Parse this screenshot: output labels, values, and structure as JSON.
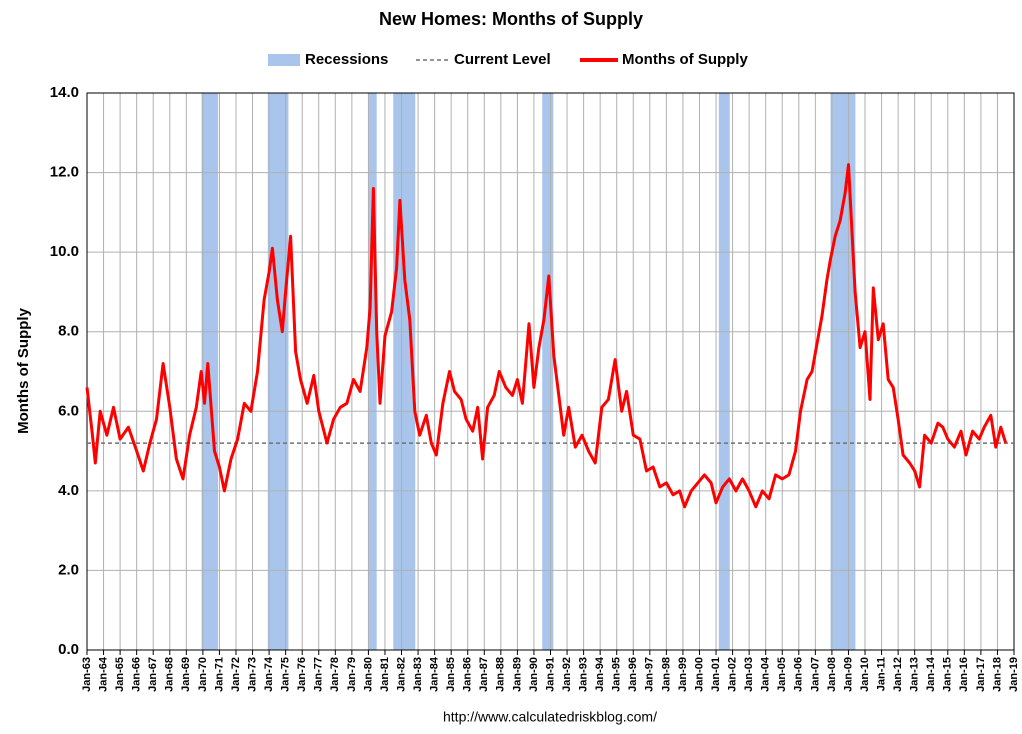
{
  "chart_data": {
    "type": "line",
    "title": "New Homes: Months of Supply",
    "ylabel": "Months of Supply",
    "source": "http://www.calculatedriskblog.com/",
    "grid": true,
    "xlim": [
      1963,
      2019
    ],
    "ylim": [
      0,
      14
    ],
    "yticks": [
      {
        "value": 0,
        "label": "0.0"
      },
      {
        "value": 2,
        "label": "2.0"
      },
      {
        "value": 4,
        "label": "4.0"
      },
      {
        "value": 6,
        "label": "6.0"
      },
      {
        "value": 8,
        "label": "8.0"
      },
      {
        "value": 10,
        "label": "10.0"
      },
      {
        "value": 12,
        "label": "12.0"
      },
      {
        "value": 14,
        "label": "14.0"
      }
    ],
    "xticks": [
      {
        "value": 1963,
        "label": "Jan-63"
      },
      {
        "value": 1964,
        "label": "Jan-64"
      },
      {
        "value": 1965,
        "label": "Jan-65"
      },
      {
        "value": 1966,
        "label": "Jan-66"
      },
      {
        "value": 1967,
        "label": "Jan-67"
      },
      {
        "value": 1968,
        "label": "Jan-68"
      },
      {
        "value": 1969,
        "label": "Jan-69"
      },
      {
        "value": 1970,
        "label": "Jan-70"
      },
      {
        "value": 1971,
        "label": "Jan-71"
      },
      {
        "value": 1972,
        "label": "Jan-72"
      },
      {
        "value": 1973,
        "label": "Jan-73"
      },
      {
        "value": 1974,
        "label": "Jan-74"
      },
      {
        "value": 1975,
        "label": "Jan-75"
      },
      {
        "value": 1976,
        "label": "Jan-76"
      },
      {
        "value": 1977,
        "label": "Jan-77"
      },
      {
        "value": 1978,
        "label": "Jan-78"
      },
      {
        "value": 1979,
        "label": "Jan-79"
      },
      {
        "value": 1980,
        "label": "Jan-80"
      },
      {
        "value": 1981,
        "label": "Jan-81"
      },
      {
        "value": 1982,
        "label": "Jan-82"
      },
      {
        "value": 1983,
        "label": "Jan-83"
      },
      {
        "value": 1984,
        "label": "Jan-84"
      },
      {
        "value": 1985,
        "label": "Jan-85"
      },
      {
        "value": 1986,
        "label": "Jan-86"
      },
      {
        "value": 1987,
        "label": "Jan-87"
      },
      {
        "value": 1988,
        "label": "Jan-88"
      },
      {
        "value": 1989,
        "label": "Jan-89"
      },
      {
        "value": 1990,
        "label": "Jan-90"
      },
      {
        "value": 1991,
        "label": "Jan-91"
      },
      {
        "value": 1992,
        "label": "Jan-92"
      },
      {
        "value": 1993,
        "label": "Jan-93"
      },
      {
        "value": 1994,
        "label": "Jan-94"
      },
      {
        "value": 1995,
        "label": "Jan-95"
      },
      {
        "value": 1996,
        "label": "Jan-96"
      },
      {
        "value": 1997,
        "label": "Jan-97"
      },
      {
        "value": 1998,
        "label": "Jan-98"
      },
      {
        "value": 1999,
        "label": "Jan-99"
      },
      {
        "value": 2000,
        "label": "Jan-00"
      },
      {
        "value": 2001,
        "label": "Jan-01"
      },
      {
        "value": 2002,
        "label": "Jan-02"
      },
      {
        "value": 2003,
        "label": "Jan-03"
      },
      {
        "value": 2004,
        "label": "Jan-04"
      },
      {
        "value": 2005,
        "label": "Jan-05"
      },
      {
        "value": 2006,
        "label": "Jan-06"
      },
      {
        "value": 2007,
        "label": "Jan-07"
      },
      {
        "value": 2008,
        "label": "Jan-08"
      },
      {
        "value": 2009,
        "label": "Jan-09"
      },
      {
        "value": 2010,
        "label": "Jan-10"
      },
      {
        "value": 2011,
        "label": "Jan-11"
      },
      {
        "value": 2012,
        "label": "Jan-12"
      },
      {
        "value": 2013,
        "label": "Jan-13"
      },
      {
        "value": 2014,
        "label": "Jan-14"
      },
      {
        "value": 2015,
        "label": "Jan-15"
      },
      {
        "value": 2016,
        "label": "Jan-16"
      },
      {
        "value": 2017,
        "label": "Jan-17"
      },
      {
        "value": 2018,
        "label": "Jan-18"
      },
      {
        "value": 2019,
        "label": "Jan-19"
      }
    ],
    "recessions": {
      "name": "Recessions",
      "color": "#a9c5ec",
      "spans": [
        [
          1969.92,
          1970.92
        ],
        [
          1973.92,
          1975.17
        ],
        [
          1980.0,
          1980.5
        ],
        [
          1981.5,
          1982.83
        ],
        [
          1990.5,
          1991.17
        ],
        [
          2001.17,
          2001.83
        ],
        [
          2007.92,
          2009.42
        ]
      ]
    },
    "current_level": {
      "name": "Current Level",
      "value": 5.2,
      "color": "#707070"
    },
    "x": [
      1963.0,
      1963.3,
      1963.5,
      1963.8,
      1964.2,
      1964.6,
      1965.0,
      1965.5,
      1966.0,
      1966.4,
      1966.8,
      1967.2,
      1967.6,
      1968.0,
      1968.4,
      1968.8,
      1969.2,
      1969.6,
      1969.9,
      1970.1,
      1970.3,
      1970.7,
      1971.0,
      1971.3,
      1971.7,
      1972.1,
      1972.5,
      1972.9,
      1973.3,
      1973.7,
      1974.0,
      1974.2,
      1974.5,
      1974.8,
      1975.0,
      1975.3,
      1975.6,
      1975.9,
      1976.3,
      1976.7,
      1977.0,
      1977.5,
      1977.9,
      1978.3,
      1978.7,
      1979.1,
      1979.5,
      1979.9,
      1980.1,
      1980.3,
      1980.5,
      1980.7,
      1981.0,
      1981.4,
      1981.7,
      1981.9,
      1982.2,
      1982.5,
      1982.8,
      1983.1,
      1983.5,
      1983.8,
      1984.1,
      1984.5,
      1984.9,
      1985.2,
      1985.6,
      1985.9,
      1986.3,
      1986.6,
      1986.9,
      1987.2,
      1987.6,
      1987.9,
      1988.3,
      1988.7,
      1989.0,
      1989.3,
      1989.7,
      1990.0,
      1990.3,
      1990.6,
      1990.9,
      1991.2,
      1991.5,
      1991.8,
      1992.1,
      1992.5,
      1992.9,
      1993.3,
      1993.7,
      1994.1,
      1994.5,
      1994.9,
      1995.3,
      1995.6,
      1996.0,
      1996.4,
      1996.8,
      1997.2,
      1997.6,
      1998.0,
      1998.4,
      1998.8,
      1999.1,
      1999.5,
      1999.9,
      2000.3,
      2000.7,
      2001.0,
      2001.4,
      2001.8,
      2002.2,
      2002.6,
      2003.0,
      2003.4,
      2003.8,
      2004.2,
      2004.6,
      2005.0,
      2005.4,
      2005.8,
      2006.1,
      2006.5,
      2006.8,
      2007.1,
      2007.4,
      2007.7,
      2007.9,
      2008.2,
      2008.5,
      2008.8,
      2009.0,
      2009.2,
      2009.4,
      2009.7,
      2010.0,
      2010.3,
      2010.5,
      2010.8,
      2011.1,
      2011.4,
      2011.7,
      2012.0,
      2012.3,
      2012.7,
      2013.0,
      2013.3,
      2013.6,
      2014.0,
      2014.4,
      2014.7,
      2015.0,
      2015.4,
      2015.8,
      2016.1,
      2016.5,
      2016.9,
      2017.2,
      2017.6,
      2017.9,
      2018.2,
      2018.5
    ],
    "series": [
      {
        "name": "Months of Supply",
        "color": "#ff0000",
        "values": [
          6.6,
          5.5,
          4.7,
          6.0,
          5.4,
          6.1,
          5.3,
          5.6,
          5.0,
          4.5,
          5.2,
          5.8,
          7.2,
          6.1,
          4.8,
          4.3,
          5.4,
          6.1,
          7.0,
          6.2,
          7.2,
          5.0,
          4.6,
          4.0,
          4.8,
          5.3,
          6.2,
          6.0,
          7.0,
          8.8,
          9.5,
          10.1,
          8.8,
          8.0,
          9.0,
          10.4,
          7.5,
          6.8,
          6.2,
          6.9,
          6.0,
          5.2,
          5.8,
          6.1,
          6.2,
          6.8,
          6.5,
          7.6,
          8.6,
          11.6,
          8.0,
          6.2,
          7.9,
          8.5,
          9.6,
          11.3,
          9.3,
          8.3,
          6.0,
          5.4,
          5.9,
          5.2,
          4.9,
          6.2,
          7.0,
          6.5,
          6.3,
          5.8,
          5.5,
          6.1,
          4.8,
          6.1,
          6.4,
          7.0,
          6.6,
          6.4,
          6.8,
          6.2,
          8.2,
          6.6,
          7.6,
          8.3,
          9.4,
          7.4,
          6.4,
          5.4,
          6.1,
          5.1,
          5.4,
          5.0,
          4.7,
          6.1,
          6.3,
          7.3,
          6.0,
          6.5,
          5.4,
          5.3,
          4.5,
          4.6,
          4.1,
          4.2,
          3.9,
          4.0,
          3.6,
          4.0,
          4.2,
          4.4,
          4.2,
          3.7,
          4.1,
          4.3,
          4.0,
          4.3,
          4.0,
          3.6,
          4.0,
          3.8,
          4.4,
          4.3,
          4.4,
          5.0,
          6.0,
          6.8,
          7.0,
          7.7,
          8.4,
          9.3,
          9.8,
          10.4,
          10.8,
          11.5,
          12.2,
          10.6,
          9.0,
          7.6,
          8.0,
          6.3,
          9.1,
          7.8,
          8.2,
          6.8,
          6.6,
          5.8,
          4.9,
          4.7,
          4.5,
          4.1,
          5.4,
          5.2,
          5.7,
          5.6,
          5.3,
          5.1,
          5.5,
          4.9,
          5.5,
          5.3,
          5.6,
          5.9,
          5.1,
          5.6,
          5.2
        ]
      }
    ]
  }
}
